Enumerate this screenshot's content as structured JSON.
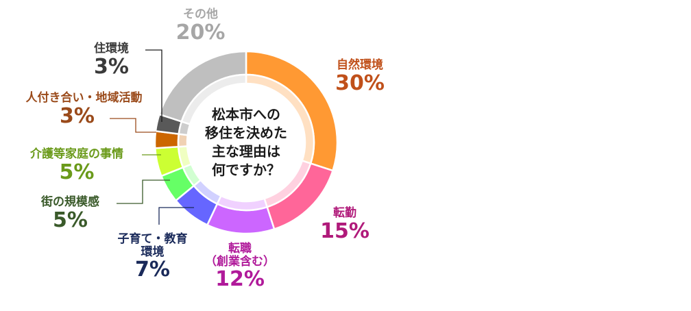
{
  "chart_data": {
    "type": "pie",
    "variant": "donut",
    "title": "松本市への移住を決めた主な理由は何ですか？",
    "center_text": [
      "松本市への",
      "移住を決めた",
      "主な理由は",
      "何ですか？"
    ],
    "unit": "%",
    "slices": [
      {
        "label": "自然環境",
        "value": 30,
        "color": "#FF9933",
        "label_color": "#C0501A"
      },
      {
        "label": "転勤",
        "value": 15,
        "color": "#FF6699",
        "label_color": "#B01A7A"
      },
      {
        "label": "転職（創業含む）",
        "value": 12,
        "color": "#CC66FF",
        "label_color": "#B01A9A"
      },
      {
        "label": "子育て・教育環境",
        "value": 7,
        "color": "#6666FF",
        "label_color": "#1A2A5A"
      },
      {
        "label": "街の規模感",
        "value": 5,
        "color": "#66FF66",
        "label_color": "#3A5A2A"
      },
      {
        "label": "介護等家庭の事情",
        "value": 5,
        "color": "#CCFF33",
        "label_color": "#6A9A1A"
      },
      {
        "label": "人付き合い・地域活動",
        "value": 3,
        "color": "#CC6600",
        "label_color": "#9A4A1A"
      },
      {
        "label": "住環境",
        "value": 3,
        "color": "#595959",
        "label_color": "#3A3A3A"
      },
      {
        "label": "その他",
        "value": 20,
        "color": "#BFBFBF",
        "label_color": "#A6A6A6"
      }
    ]
  },
  "labels": {
    "nature": {
      "name": "自然環境",
      "pct": "30%"
    },
    "transfer": {
      "name": "転勤",
      "pct": "15%"
    },
    "jobchange": {
      "name1": "転職",
      "name2": "（創業含む）",
      "pct": "12%"
    },
    "childcare": {
      "name1": "子育て・教育",
      "name2": "環境",
      "pct": "7%"
    },
    "citysize": {
      "name": "街の規模感",
      "pct": "5%"
    },
    "family": {
      "name": "介護等家庭の事情",
      "pct": "5%"
    },
    "community": {
      "name": "人付き合い・地域活動",
      "pct": "3%"
    },
    "housing": {
      "name": "住環境",
      "pct": "3%"
    },
    "other": {
      "name": "その他",
      "pct": "20%"
    }
  },
  "center": {
    "line1": "松本市への",
    "line2": "移住を決めた",
    "line3": "主な理由は",
    "line4": "何ですか？"
  }
}
